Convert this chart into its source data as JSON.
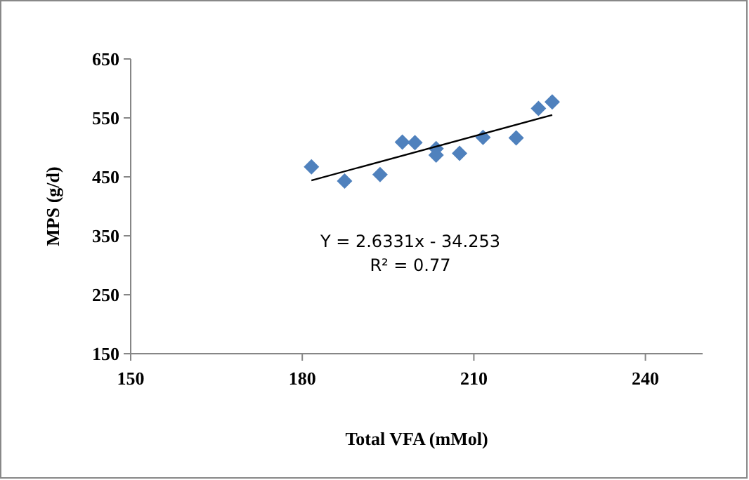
{
  "chart_data": {
    "type": "scatter",
    "xlabel": "Total VFA (mMol)",
    "ylabel": "MPS (g/d)",
    "xlim": [
      150,
      250
    ],
    "xticks": [
      150,
      180,
      210,
      240
    ],
    "ylim": [
      150,
      650
    ],
    "yticks": [
      150,
      250,
      350,
      450,
      550,
      650
    ],
    "grid": false,
    "series": [
      {
        "color": "#4f81bd",
        "marker": "diamond",
        "x": [
          181.6,
          187.4,
          193.6,
          197.5,
          199.7,
          203.4,
          203.4,
          207.5,
          211.6,
          217.4,
          221.3,
          223.7
        ],
        "values": [
          467,
          443,
          454,
          509,
          508,
          498,
          487,
          490,
          517,
          516,
          566,
          577
        ]
      },
      {
        "type": "line",
        "marker": "none",
        "color": "#000000",
        "x": [
          181.6,
          223.7
        ],
        "values": [
          444,
          555
        ]
      }
    ],
    "annotations": [
      "Y = 2.6331x - 34.253",
      "R² = 0.77"
    ]
  }
}
